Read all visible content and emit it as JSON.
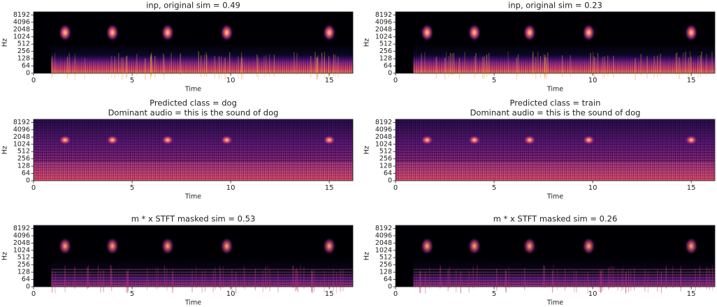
{
  "chart_data": [
    {
      "type": "spectrogram",
      "title": "inp, original sim = 0.49",
      "xlabel": "Time",
      "ylabel": "Hz",
      "xlim": [
        0,
        16.2
      ],
      "xticks": [
        0,
        5,
        10,
        15
      ],
      "ylim": [
        0,
        11025
      ],
      "yticks": [
        0,
        64,
        128,
        256,
        512,
        1024,
        2048,
        4096,
        8192
      ],
      "yscale": "symlog",
      "linthresh": 64
    },
    {
      "type": "spectrogram",
      "title": "inp, original sim = 0.23",
      "xlabel": "Time",
      "ylabel": "Hz",
      "xlim": [
        0,
        16.2
      ],
      "xticks": [
        0,
        5,
        10,
        15
      ],
      "ylim": [
        0,
        11025
      ],
      "yticks": [
        0,
        64,
        128,
        256,
        512,
        1024,
        2048,
        4096,
        8192
      ],
      "yscale": "symlog",
      "linthresh": 64
    },
    {
      "type": "spectrogram",
      "title": "Predicted class = dog",
      "subtitle": "Dominant audio = this is the sound of dog",
      "xlabel": "Time",
      "ylabel": "Hz",
      "xlim": [
        0,
        16.2
      ],
      "xticks": [
        0,
        5,
        10,
        15
      ],
      "ylim": [
        0,
        11025
      ],
      "yticks": [
        0,
        64,
        128,
        256,
        512,
        1024,
        2048,
        4096,
        8192
      ],
      "yscale": "symlog",
      "linthresh": 64
    },
    {
      "type": "spectrogram",
      "title": "Predicted class = train",
      "subtitle": "Dominant audio = this is the sound of dog",
      "xlabel": "Time",
      "ylabel": "Hz",
      "xlim": [
        0,
        16.2
      ],
      "xticks": [
        0,
        5,
        10,
        15
      ],
      "ylim": [
        0,
        11025
      ],
      "yticks": [
        0,
        64,
        128,
        256,
        512,
        1024,
        2048,
        4096,
        8192
      ],
      "yscale": "symlog",
      "linthresh": 64
    },
    {
      "type": "spectrogram",
      "title": "m * x STFT masked sim = 0.53",
      "xlabel": "Time",
      "ylabel": "Hz",
      "xlim": [
        0,
        16.2
      ],
      "xticks": [
        0,
        5,
        10,
        15
      ],
      "ylim": [
        0,
        11025
      ],
      "yticks": [
        0,
        64,
        128,
        256,
        512,
        1024,
        2048,
        4096,
        8192
      ],
      "yscale": "symlog",
      "linthresh": 64
    },
    {
      "type": "spectrogram",
      "title": "m * x STFT masked sim = 0.26",
      "xlabel": "Time",
      "ylabel": "Hz",
      "xlim": [
        0,
        16.2
      ],
      "xticks": [
        0,
        5,
        10,
        15
      ],
      "ylim": [
        0,
        11025
      ],
      "yticks": [
        0,
        64,
        128,
        256,
        512,
        1024,
        2048,
        4096,
        8192
      ],
      "yscale": "symlog",
      "linthresh": 64
    }
  ]
}
